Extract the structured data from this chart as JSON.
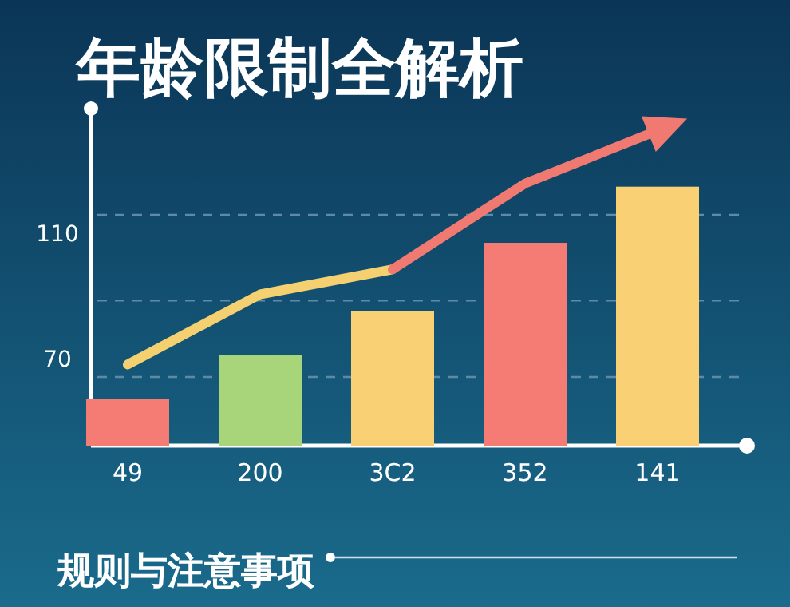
{
  "chart_data": {
    "type": "bar",
    "title": "年龄限制全解析",
    "categories": [
      "49",
      "200",
      "3C2",
      "352",
      "141"
    ],
    "series": [
      {
        "colors": [
          "#f47c74",
          "#a8d47a",
          "#f9d074",
          "#f47c74",
          "#f9d074"
        ],
        "values": [
          57,
          71,
          85,
          107,
          125
        ]
      },
      {
        "type": "line",
        "color": "#f5d070",
        "values": [
          68,
          90.5,
          98.5,
          null,
          null
        ]
      },
      {
        "type": "line",
        "color": "#f07a72",
        "values": [
          null,
          null,
          98.5,
          126,
          143
        ]
      }
    ],
    "ylim": [
      42,
      150
    ],
    "yticks": [
      70,
      110
    ],
    "ref_lines": [
      {
        "axis": "y",
        "value": 64,
        "line_style": "dashed",
        "color": "#5f8aa5"
      },
      {
        "axis": "y",
        "value": 88.5,
        "line_style": "dashed",
        "color": "#5f8aa5"
      },
      {
        "axis": "y",
        "value": 116,
        "line_style": "dashed",
        "color": "#5f8aa5"
      }
    ],
    "annotations": [
      "规则与注意事项"
    ],
    "grid": false
  }
}
